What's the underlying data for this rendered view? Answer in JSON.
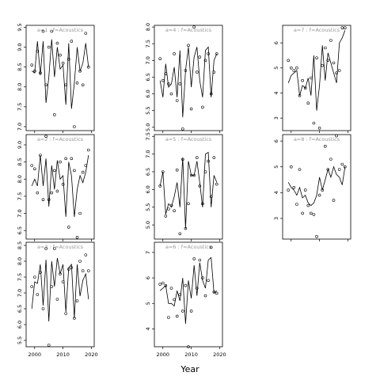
{
  "figure": {
    "xlabel": "Year"
  },
  "chart_data": [
    {
      "type": "line",
      "title": "a=1 : f=Acoustics",
      "ylim": [
        6.9,
        9.55
      ],
      "yticks": [
        7.0,
        7.5,
        8.0,
        8.5,
        9.0,
        9.5
      ],
      "xlim": [
        1997,
        2021
      ],
      "xticks": [
        2000,
        2010,
        2020
      ],
      "x": [
        1999,
        2000,
        2001,
        2002,
        2003,
        2004,
        2005,
        2006,
        2007,
        2008,
        2009,
        2010,
        2011,
        2012,
        2013,
        2014,
        2015,
        2016,
        2017,
        2018,
        2019
      ],
      "line": [
        8.4,
        8.35,
        9.15,
        8.3,
        9.15,
        7.6,
        8.25,
        9.2,
        8.25,
        9.0,
        8.45,
        8.55,
        7.55,
        9.1,
        7.45,
        8.1,
        9.0,
        8.4,
        8.6,
        9.1,
        8.5
      ],
      "points": [
        8.55,
        8.4,
        8.9,
        8.35,
        9.4,
        8.05,
        9.0,
        9.4,
        7.3,
        9.1,
        8.8,
        8.6,
        8.05,
        8.7,
        9.15,
        7.0,
        8.1,
        8.4,
        8.05,
        9.35,
        8.5
      ]
    },
    {
      "type": "line",
      "title": "a=4 : f=Acoustics",
      "ylim": [
        4.9,
        8.05
      ],
      "yticks": [
        5.0,
        5.5,
        6.0,
        6.5,
        7.0,
        7.5,
        8.0
      ],
      "xlim": [
        1997,
        2021
      ],
      "xticks": [
        2000,
        2010,
        2020
      ],
      "x": [
        1999,
        2000,
        2001,
        2002,
        2003,
        2004,
        2005,
        2006,
        2007,
        2008,
        2009,
        2010,
        2011,
        2012,
        2013,
        2014,
        2015,
        2016,
        2017,
        2018,
        2019
      ],
      "line": [
        6.4,
        5.9,
        6.9,
        6.2,
        6.3,
        6.8,
        5.9,
        7.3,
        5.3,
        6.7,
        7.4,
        6.2,
        7.1,
        7.4,
        6.4,
        5.9,
        7.3,
        7.4,
        5.9,
        7.0,
        7.2
      ],
      "points": [
        7.05,
        6.4,
        6.6,
        6.3,
        6.0,
        7.2,
        5.8,
        6.3,
        4.95,
        6.7,
        7.45,
        5.55,
        8.0,
        6.65,
        7.1,
        5.6,
        7.0,
        7.2,
        6.0,
        6.65,
        7.2
      ]
    },
    {
      "type": "line",
      "title": "a=7 : f=Acoustics",
      "ylim": [
        2.5,
        6.7
      ],
      "yticks": [
        3,
        4,
        5,
        6
      ],
      "xlim": [
        1997,
        2021
      ],
      "xticks": [
        2000,
        2010,
        2020
      ],
      "x": [
        1999,
        2000,
        2001,
        2002,
        2003,
        2004,
        2005,
        2006,
        2007,
        2008,
        2009,
        2010,
        2011,
        2012,
        2013,
        2014,
        2015,
        2016,
        2017,
        2018,
        2019
      ],
      "line": [
        4.4,
        4.7,
        4.8,
        4.9,
        3.9,
        4.3,
        4.2,
        4.6,
        3.9,
        5.5,
        3.3,
        4.3,
        5.9,
        4.5,
        5.6,
        5.2,
        4.8,
        4.4,
        6.0,
        6.2,
        6.5
      ],
      "points": [
        5.3,
        5.0,
        4.9,
        5.0,
        3.9,
        4.5,
        4.2,
        3.6,
        4.6,
        2.8,
        5.4,
        2.6,
        5.1,
        5.8,
        5.3,
        6.1,
        5.2,
        4.8,
        4.9,
        6.6,
        6.6
      ]
    },
    {
      "type": "line",
      "title": "a=2 : f=Acoustics",
      "ylim": [
        6.25,
        9.3
      ],
      "yticks": [
        6.5,
        7.0,
        7.5,
        8.0,
        8.5,
        9.0
      ],
      "xlim": [
        1997,
        2021
      ],
      "xticks": [
        2000,
        2010,
        2020
      ],
      "x": [
        1999,
        2000,
        2001,
        2002,
        2003,
        2004,
        2005,
        2006,
        2007,
        2008,
        2009,
        2010,
        2011,
        2012,
        2013,
        2014,
        2015,
        2016,
        2017,
        2018,
        2019
      ],
      "line": [
        7.8,
        8.0,
        7.8,
        8.7,
        7.8,
        8.6,
        7.2,
        8.4,
        7.7,
        8.55,
        8.0,
        8.1,
        6.9,
        8.5,
        8.1,
        6.9,
        7.7,
        8.1,
        7.9,
        8.2,
        8.7
      ],
      "points": [
        8.4,
        8.3,
        7.6,
        8.7,
        7.4,
        9.25,
        7.4,
        7.6,
        8.25,
        7.65,
        8.5,
        7.85,
        8.6,
        6.6,
        8.6,
        8.25,
        6.3,
        7.0,
        8.2,
        8.4,
        8.85
      ]
    },
    {
      "type": "line",
      "title": "a=5 : f=Acoustics",
      "ylim": [
        4.6,
        7.55
      ],
      "yticks": [
        5.0,
        5.5,
        6.0,
        6.5,
        7.0,
        7.5
      ],
      "xlim": [
        1997,
        2021
      ],
      "xticks": [
        2000,
        2010,
        2020
      ],
      "x": [
        1999,
        2000,
        2001,
        2002,
        2003,
        2004,
        2005,
        2006,
        2007,
        2008,
        2009,
        2010,
        2011,
        2012,
        2013,
        2014,
        2015,
        2016,
        2017,
        2018,
        2019
      ],
      "line": [
        6.1,
        6.5,
        5.3,
        5.6,
        5.5,
        5.8,
        6.2,
        5.5,
        6.9,
        4.9,
        6.8,
        6.4,
        6.4,
        6.8,
        6.2,
        5.5,
        7.0,
        7.05,
        5.5,
        6.4,
        6.2
      ],
      "points": [
        6.1,
        6.5,
        5.25,
        5.45,
        5.55,
        5.4,
        6.55,
        4.75,
        6.85,
        4.9,
        5.6,
        6.4,
        6.4,
        6.9,
        6.1,
        5.6,
        6.5,
        6.8,
        5.8,
        6.9,
        6.15
      ]
    },
    {
      "type": "line",
      "title": "a=8 : f=Acoustics",
      "ylim": [
        2.2,
        6.25
      ],
      "yticks": [
        3,
        4,
        5,
        6
      ],
      "xlim": [
        1997,
        2021
      ],
      "xticks": [
        2000,
        2010,
        2020
      ],
      "x": [
        1999,
        2000,
        2001,
        2002,
        2003,
        2004,
        2005,
        2006,
        2007,
        2008,
        2009,
        2010,
        2011,
        2012,
        2013,
        2014,
        2015,
        2016,
        2017,
        2018,
        2019
      ],
      "line": [
        4.4,
        4.2,
        4.1,
        3.9,
        4.2,
        3.8,
        3.9,
        3.6,
        3.5,
        3.6,
        3.9,
        4.6,
        4.1,
        4.5,
        4.9,
        4.6,
        5.0,
        4.7,
        4.6,
        4.3,
        5.0
      ],
      "points": [
        4.1,
        5.0,
        4.2,
        3.55,
        4.9,
        3.2,
        4.1,
        3.5,
        3.2,
        3.15,
        2.3,
        3.9,
        4.1,
        5.8,
        4.9,
        5.3,
        3.7,
        6.2,
        4.9,
        5.1,
        5.0
      ]
    },
    {
      "type": "line",
      "title": "a=3 : f=Acoustics",
      "ylim": [
        5.3,
        8.6
      ],
      "yticks": [
        5.5,
        6.0,
        6.5,
        7.0,
        7.5,
        8.0,
        8.5
      ],
      "xlim": [
        1997,
        2021
      ],
      "xticks": [
        2000,
        2010,
        2020
      ],
      "x": [
        1999,
        2000,
        2001,
        2002,
        2003,
        2004,
        2005,
        2006,
        2007,
        2008,
        2009,
        2010,
        2011,
        2012,
        2013,
        2014,
        2015,
        2016,
        2017,
        2018,
        2019
      ],
      "line": [
        6.5,
        7.35,
        7.3,
        7.9,
        6.6,
        8.05,
        6.1,
        8.0,
        7.2,
        8.1,
        7.6,
        7.9,
        6.4,
        7.8,
        7.9,
        6.2,
        7.9,
        6.9,
        7.4,
        7.6,
        6.8
      ],
      "points": [
        7.2,
        7.5,
        6.95,
        7.65,
        6.5,
        8.4,
        5.35,
        7.2,
        8.4,
        6.8,
        7.6,
        7.35,
        6.35,
        7.75,
        7.8,
        6.2,
        6.75,
        8.0,
        7.7,
        8.2,
        7.7
      ]
    },
    {
      "type": "line",
      "title": "a=6 : f=Acoustics",
      "ylim": [
        3.3,
        7.4
      ],
      "yticks": [
        4,
        5,
        6,
        7
      ],
      "xlim": [
        1997,
        2021
      ],
      "xticks": [
        2000,
        2010,
        2020
      ],
      "x": [
        1999,
        2000,
        2001,
        2002,
        2003,
        2004,
        2005,
        2006,
        2007,
        2008,
        2009,
        2010,
        2011,
        2012,
        2013,
        2014,
        2015,
        2016,
        2017,
        2018,
        2019
      ],
      "line": [
        5.5,
        5.6,
        5.7,
        5.0,
        5.0,
        4.9,
        5.5,
        5.1,
        6.0,
        4.2,
        5.9,
        5.2,
        6.5,
        5.3,
        6.6,
        5.9,
        5.6,
        6.7,
        6.8,
        5.4,
        5.5
      ],
      "points": [
        5.75,
        5.8,
        5.7,
        4.45,
        5.6,
        5.15,
        4.5,
        5.35,
        4.7,
        5.7,
        3.3,
        4.7,
        6.75,
        5.6,
        6.7,
        6.0,
        5.3,
        5.9,
        7.2,
        5.45,
        5.4
      ]
    }
  ]
}
